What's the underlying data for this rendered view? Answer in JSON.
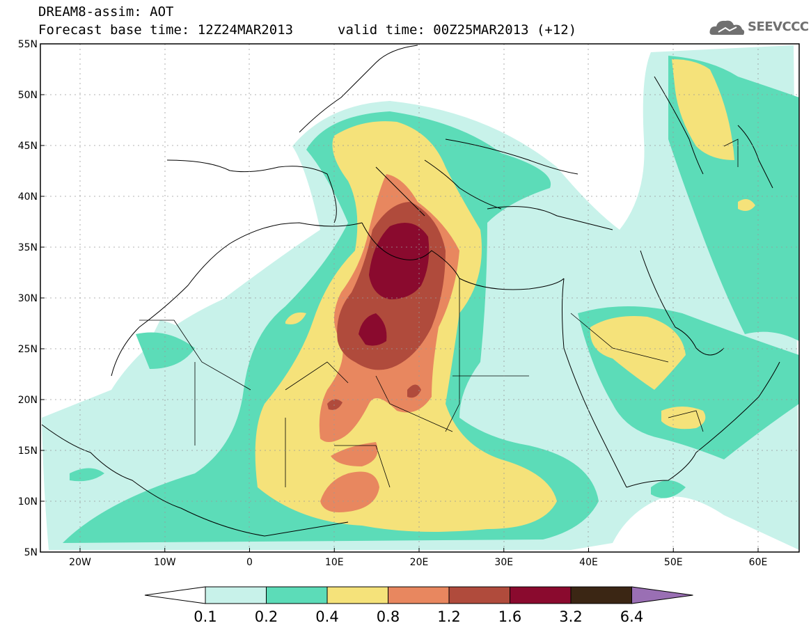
{
  "header": {
    "line1": "DREAM8-assim: AOT",
    "line2": "Forecast base time: 12Z24MAR2013",
    "valid": "valid time: 00Z25MAR2013 (+12)"
  },
  "logo": {
    "text": "SEEVCCC",
    "icon": "cloud-logo-icon"
  },
  "axes": {
    "lat_labels": [
      "55N",
      "50N",
      "45N",
      "40N",
      "35N",
      "30N",
      "25N",
      "20N",
      "15N",
      "10N",
      "5N"
    ],
    "lon_labels": [
      "20W",
      "10W",
      "0",
      "10E",
      "20E",
      "30E",
      "40E",
      "50E",
      "60E"
    ]
  },
  "colorbar": {
    "labels": [
      "0.1",
      "0.2",
      "0.4",
      "0.8",
      "1.2",
      "1.6",
      "3.2",
      "6.4"
    ],
    "colors": [
      "#ffffff",
      "#c8f2ea",
      "#5cdcb8",
      "#f5e27a",
      "#e8875f",
      "#b04b3c",
      "#8a0a2e",
      "#3b2614",
      "#9a6fb4"
    ]
  }
}
